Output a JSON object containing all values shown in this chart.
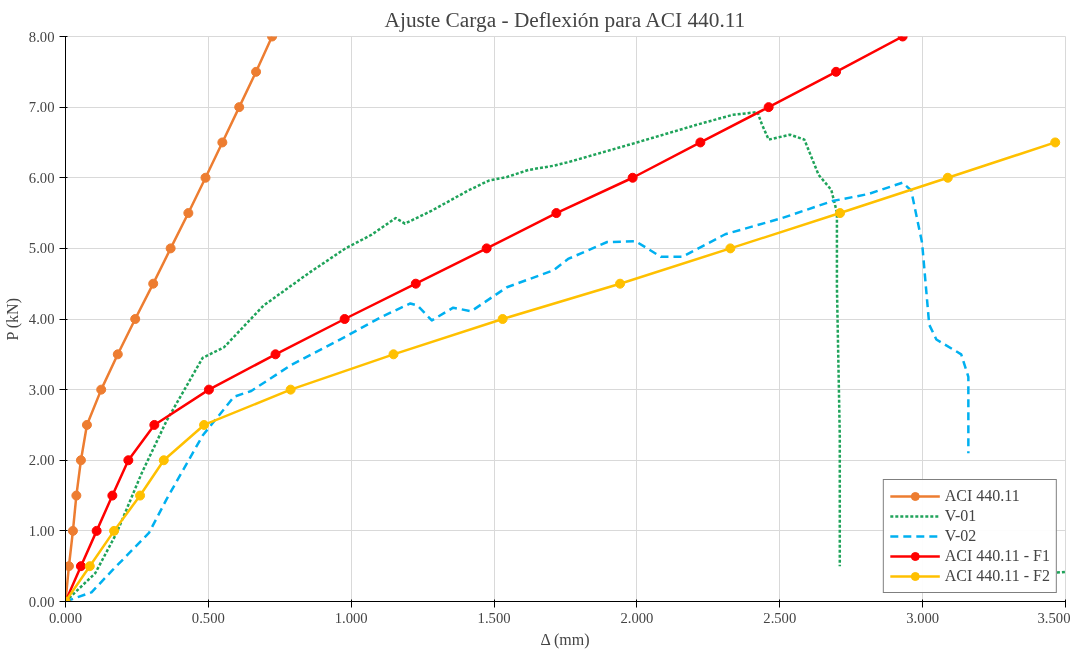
{
  "chart_data": {
    "type": "line",
    "title": "Ajuste Carga - Deflexión para ACI 440.11",
    "xlabel": "Δ (mm)",
    "ylabel": "P (kN)",
    "xlim": [
      0,
      3.5
    ],
    "ylim": [
      0,
      8
    ],
    "xticks": [
      {
        "value": 0,
        "label": "0.000"
      },
      {
        "value": 0.5,
        "label": "0.500"
      },
      {
        "value": 1,
        "label": "1.000"
      },
      {
        "value": 1.5,
        "label": "1.500"
      },
      {
        "value": 2,
        "label": "2.000"
      },
      {
        "value": 2.5,
        "label": "2.500"
      },
      {
        "value": 3,
        "label": "3.000"
      },
      {
        "value": 3.5,
        "label": "3.500"
      }
    ],
    "yticks": [
      {
        "value": 0,
        "label": "0.00"
      },
      {
        "value": 1,
        "label": "1.00"
      },
      {
        "value": 2,
        "label": "2.00"
      },
      {
        "value": 3,
        "label": "3.00"
      },
      {
        "value": 4,
        "label": "4.00"
      },
      {
        "value": 5,
        "label": "5.00"
      },
      {
        "value": 6,
        "label": "6.00"
      },
      {
        "value": 7,
        "label": "7.00"
      },
      {
        "value": 8,
        "label": "8.00"
      }
    ],
    "grid": true,
    "legend": "bottom right",
    "series": [
      {
        "name": "ACI 440.11",
        "color": "#ed7d31",
        "marker": "circle",
        "line_style": "solid",
        "x": [
          0,
          0.012,
          0.026,
          0.038,
          0.054,
          0.075,
          0.125,
          0.183,
          0.244,
          0.307,
          0.368,
          0.43,
          0.49,
          0.549,
          0.608,
          0.667,
          0.723
        ],
        "values": [
          0,
          0.5,
          1,
          1.5,
          2,
          2.5,
          3,
          3.5,
          4,
          4.5,
          5,
          5.5,
          6,
          6.5,
          7,
          7.5,
          8
        ]
      },
      {
        "name": "V-01",
        "color": "#1fa35a",
        "marker": "none",
        "line_style": "dotted",
        "x": [
          0,
          0.104,
          0.179,
          0.267,
          0.354,
          0.48,
          0.555,
          0.693,
          0.855,
          0.98,
          1.07,
          1.156,
          1.188,
          1.28,
          1.41,
          1.482,
          1.545,
          1.62,
          1.708,
          1.759,
          2.009,
          2.209,
          2.334,
          2.422,
          2.436,
          2.461,
          2.536,
          2.586,
          2.636,
          2.68,
          2.7,
          2.7,
          2.71,
          2.71,
          3.0,
          3.47,
          3.5
        ],
        "values": [
          0,
          0.4,
          0.97,
          1.82,
          2.56,
          3.45,
          3.6,
          4.19,
          4.66,
          5.0,
          5.19,
          5.43,
          5.35,
          5.53,
          5.82,
          5.96,
          6.01,
          6.11,
          6.17,
          6.22,
          6.51,
          6.75,
          6.89,
          6.93,
          6.77,
          6.54,
          6.61,
          6.54,
          6.04,
          5.83,
          5.51,
          4.46,
          2.35,
          0.5,
          null,
          0.41,
          0.42
        ]
      },
      {
        "name": "V-02",
        "color": "#00b0f0",
        "marker": "none",
        "line_style": "dashed",
        "x": [
          0,
          0.091,
          0.166,
          0.292,
          0.354,
          0.48,
          0.59,
          0.65,
          0.79,
          0.98,
          1.106,
          1.207,
          1.232,
          1.282,
          1.357,
          1.42,
          1.545,
          1.708,
          1.759,
          1.896,
          1.996,
          2.084,
          2.159,
          2.309,
          2.509,
          2.684,
          2.81,
          2.93,
          2.96,
          2.998,
          3.023,
          3.048,
          3.135,
          3.16,
          3.16
        ],
        "values": [
          0,
          0.13,
          0.45,
          0.97,
          1.45,
          2.35,
          2.9,
          2.98,
          3.35,
          3.75,
          4.03,
          4.22,
          4.19,
          3.98,
          4.16,
          4.11,
          4.45,
          4.69,
          4.85,
          5.09,
          5.1,
          4.88,
          4.88,
          5.2,
          5.43,
          5.67,
          5.77,
          5.93,
          5.82,
          5.08,
          3.92,
          3.71,
          3.5,
          3.18,
          2.1
        ]
      },
      {
        "name": "ACI 440.11 - F1",
        "color": "#ff0000",
        "marker": "circle",
        "line_style": "solid",
        "x": [
          0,
          0.054,
          0.109,
          0.164,
          0.22,
          0.311,
          0.502,
          0.735,
          0.977,
          1.226,
          1.474,
          1.718,
          1.985,
          2.222,
          2.461,
          2.697,
          2.93
        ],
        "values": [
          0,
          0.5,
          1,
          1.5,
          2,
          2.5,
          3,
          3.5,
          4,
          4.5,
          5,
          5.5,
          6,
          6.5,
          7,
          7.5,
          8
        ]
      },
      {
        "name": "ACI 440.11 - F2",
        "color": "#ffc000",
        "marker": "circle",
        "line_style": "solid",
        "x": [
          0,
          0.085,
          0.17,
          0.261,
          0.344,
          0.485,
          0.788,
          1.148,
          1.53,
          1.941,
          2.327,
          2.711,
          3.088,
          3.464
        ],
        "values": [
          0,
          0.5,
          1,
          1.5,
          2,
          2.5,
          3,
          3.5,
          4,
          4.5,
          5,
          5.5,
          6,
          6.5
        ]
      }
    ]
  }
}
